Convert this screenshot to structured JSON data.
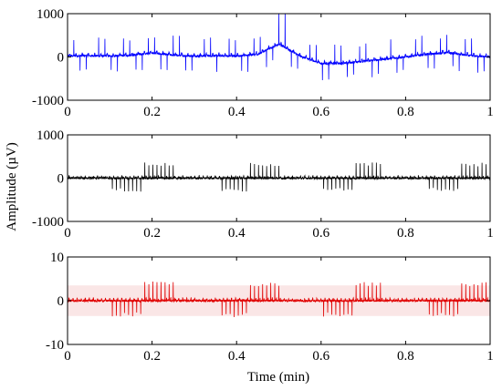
{
  "chart_data": {
    "type": "line",
    "xlabel": "Time (min)",
    "ylabel": "Amplitude (µV)",
    "panels": [
      {
        "series_color": "#0000ff",
        "xlim": [
          0,
          1
        ],
        "ylim": [
          -1000,
          1000
        ],
        "xticks": [
          "0",
          "0.2",
          "0.4",
          "0.6",
          "0.8",
          "1"
        ],
        "yticks": [
          "1000",
          "0",
          "-1000"
        ],
        "x": [
          0,
          0.05,
          0.1,
          0.15,
          0.2,
          0.25,
          0.3,
          0.35,
          0.4,
          0.45,
          0.5,
          0.55,
          0.6,
          0.65,
          0.7,
          0.75,
          0.8,
          0.85,
          0.9,
          0.95,
          1.0
        ],
        "baseline": [
          20,
          30,
          20,
          40,
          90,
          40,
          20,
          30,
          20,
          60,
          300,
          20,
          -150,
          -150,
          -100,
          -50,
          0,
          60,
          100,
          30,
          0
        ],
        "spike_amplitude": 400,
        "beats_per_min": 68,
        "max_peak": 1000
      },
      {
        "series_color": "#000000",
        "xlim": [
          0,
          1
        ],
        "ylim": [
          -1000,
          1000
        ],
        "xticks": [
          "0",
          "0.2",
          "0.4",
          "0.6",
          "0.8",
          "1"
        ],
        "yticks": [
          "1000",
          "0",
          "-1000"
        ],
        "x": [
          0,
          0.5,
          1.0
        ],
        "baseline": [
          0,
          0,
          0
        ],
        "spike_amplitude": 320,
        "beats_per_min": 104,
        "max_peak": 380
      },
      {
        "series_color": "#e00000",
        "xlim": [
          0,
          1
        ],
        "ylim": [
          -10,
          10
        ],
        "xticks": [
          "0",
          "0.2",
          "0.4",
          "0.6",
          "0.8",
          "1"
        ],
        "yticks": [
          "10",
          "0",
          "-10"
        ],
        "x": [
          0,
          0.5,
          1.0
        ],
        "baseline": [
          0,
          0,
          0
        ],
        "spike_amplitude": 3.8,
        "beats_per_min": 104,
        "max_peak": 4.5
      }
    ]
  }
}
